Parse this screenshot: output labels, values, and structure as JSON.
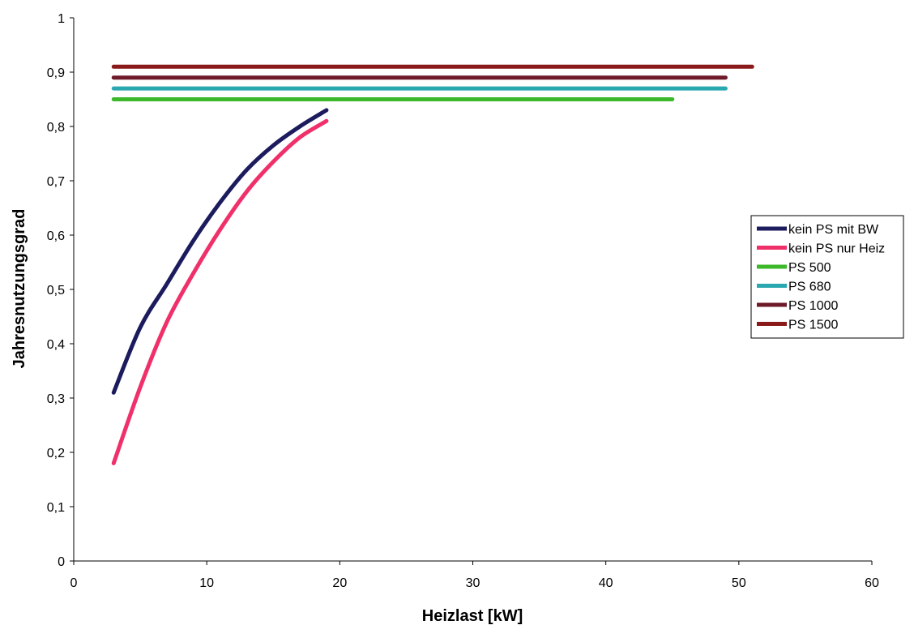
{
  "chart_data": {
    "type": "line",
    "title": "",
    "xlabel": "Heizlast [kW]",
    "ylabel": "Jahresnutzungsgrad",
    "xlim": [
      0,
      60
    ],
    "ylim": [
      0,
      1
    ],
    "x_ticks": [
      0,
      10,
      20,
      30,
      40,
      50,
      60
    ],
    "x_tick_labels": [
      "0",
      "10",
      "20",
      "30",
      "40",
      "50",
      "60"
    ],
    "y_ticks": [
      0,
      0.1,
      0.2,
      0.3,
      0.4,
      0.5,
      0.6,
      0.7,
      0.8,
      0.9,
      1
    ],
    "y_tick_labels": [
      "0",
      "0,1",
      "0,2",
      "0,3",
      "0,4",
      "0,5",
      "0,6",
      "0,7",
      "0,8",
      "0,9",
      "1"
    ],
    "grid": false,
    "legend_position": "right",
    "series": [
      {
        "name": "kein PS mit BW",
        "color": "#1b1b5e",
        "x": [
          3,
          5,
          7,
          9,
          11,
          13,
          15,
          17,
          19
        ],
        "y": [
          0.31,
          0.43,
          0.51,
          0.59,
          0.66,
          0.72,
          0.765,
          0.8,
          0.83
        ]
      },
      {
        "name": "kein PS nur Heiz",
        "color": "#f0306a",
        "x": [
          3,
          5,
          7,
          9,
          11,
          13,
          15,
          17,
          19
        ],
        "y": [
          0.18,
          0.32,
          0.44,
          0.53,
          0.61,
          0.68,
          0.735,
          0.78,
          0.81
        ]
      },
      {
        "name": "PS 500",
        "color": "#3cb82a",
        "x": [
          3,
          45
        ],
        "y": [
          0.85,
          0.85
        ]
      },
      {
        "name": "PS 680",
        "color": "#2aa8b0",
        "x": [
          3,
          49
        ],
        "y": [
          0.87,
          0.87
        ]
      },
      {
        "name": "PS 1000",
        "color": "#6e1a28",
        "x": [
          3,
          49
        ],
        "y": [
          0.89,
          0.89
        ]
      },
      {
        "name": "PS 1500",
        "color": "#8a1a1a",
        "x": [
          3,
          51
        ],
        "y": [
          0.91,
          0.91
        ]
      }
    ]
  }
}
